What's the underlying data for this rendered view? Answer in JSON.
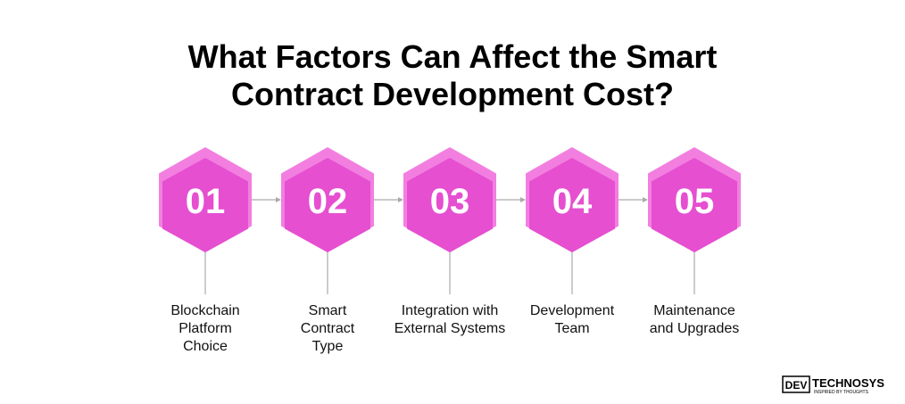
{
  "title": [
    "What Factors Can Affect the Smart",
    "Contract Development Cost?"
  ],
  "steps": [
    {
      "number": "01",
      "label": [
        "Blockchain",
        "Platform",
        "Choice"
      ]
    },
    {
      "number": "02",
      "label": [
        "Smart",
        "Contract",
        "Type"
      ]
    },
    {
      "number": "03",
      "label": [
        "Integration with",
        "External Systems"
      ]
    },
    {
      "number": "04",
      "label": [
        "Development",
        "Team"
      ]
    },
    {
      "number": "05",
      "label": [
        "Maintenance",
        "and Upgrades"
      ]
    }
  ],
  "logo": {
    "brand": "DEV",
    "name": "TECHNOSYS",
    "tagline": "INSPIRED BY THOUGHTS"
  }
}
